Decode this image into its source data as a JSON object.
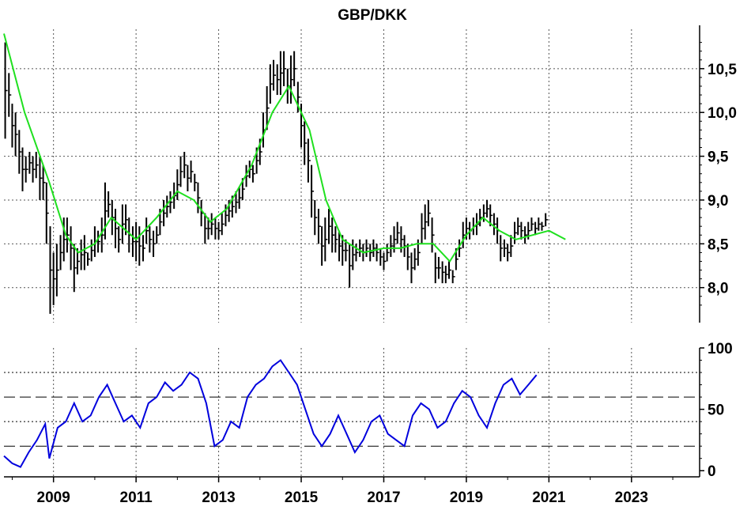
{
  "chart_data": [
    {
      "type": "ohlc",
      "title": "GBP/DKK",
      "y_ticks": [
        "8,0",
        "8,5",
        "9,0",
        "9,5",
        "10,0",
        "10,5"
      ],
      "ylim": [
        7.6,
        10.95
      ],
      "xlim": [
        2007.8,
        2024.65
      ],
      "grid": true,
      "colors": {
        "bars": "#000000",
        "moving_average": "#1fe01f",
        "grid": "#555555"
      },
      "bars_monthly_approx": [
        [
          2007.83,
          10.8,
          9.7
        ],
        [
          2007.92,
          10.45,
          9.95
        ],
        [
          2008.0,
          10.1,
          9.6
        ],
        [
          2008.08,
          10.0,
          9.5
        ],
        [
          2008.17,
          9.8,
          9.3
        ],
        [
          2008.25,
          9.6,
          9.1
        ],
        [
          2008.33,
          9.5,
          9.2
        ],
        [
          2008.42,
          9.55,
          9.3
        ],
        [
          2008.5,
          9.5,
          9.2
        ],
        [
          2008.58,
          9.55,
          9.25
        ],
        [
          2008.67,
          9.5,
          9.0
        ],
        [
          2008.75,
          9.4,
          9.0
        ],
        [
          2008.83,
          9.2,
          8.5
        ],
        [
          2008.92,
          8.7,
          7.7
        ],
        [
          2009.0,
          8.4,
          7.8
        ],
        [
          2009.08,
          8.5,
          7.9
        ],
        [
          2009.17,
          8.6,
          8.2
        ],
        [
          2009.25,
          8.8,
          8.3
        ],
        [
          2009.33,
          8.8,
          8.4
        ],
        [
          2009.42,
          8.7,
          8.2
        ],
        [
          2009.5,
          8.5,
          7.95
        ],
        [
          2009.58,
          8.45,
          8.15
        ],
        [
          2009.67,
          8.55,
          8.2
        ],
        [
          2009.75,
          8.6,
          8.2
        ],
        [
          2009.83,
          8.4,
          8.25
        ],
        [
          2009.92,
          8.55,
          8.3
        ],
        [
          2010.0,
          8.7,
          8.35
        ],
        [
          2010.08,
          8.65,
          8.4
        ],
        [
          2010.17,
          8.8,
          8.4
        ],
        [
          2010.25,
          9.2,
          8.55
        ],
        [
          2010.33,
          9.1,
          8.8
        ],
        [
          2010.42,
          9.0,
          8.6
        ],
        [
          2010.5,
          8.9,
          8.45
        ],
        [
          2010.58,
          8.7,
          8.4
        ],
        [
          2010.67,
          8.95,
          8.5
        ],
        [
          2010.75,
          8.95,
          8.6
        ],
        [
          2010.83,
          8.8,
          8.4
        ],
        [
          2010.92,
          8.7,
          8.35
        ],
        [
          2011.0,
          8.75,
          8.3
        ],
        [
          2011.08,
          8.7,
          8.25
        ],
        [
          2011.17,
          8.6,
          8.3
        ],
        [
          2011.25,
          8.8,
          8.5
        ],
        [
          2011.33,
          8.7,
          8.4
        ],
        [
          2011.42,
          8.65,
          8.35
        ],
        [
          2011.5,
          8.7,
          8.5
        ],
        [
          2011.58,
          8.9,
          8.6
        ],
        [
          2011.67,
          9.0,
          8.7
        ],
        [
          2011.75,
          9.05,
          8.8
        ],
        [
          2011.83,
          9.1,
          8.85
        ],
        [
          2011.92,
          9.2,
          8.9
        ],
        [
          2012.0,
          9.35,
          9.0
        ],
        [
          2012.08,
          9.5,
          9.15
        ],
        [
          2012.17,
          9.55,
          9.25
        ],
        [
          2012.25,
          9.4,
          9.1
        ],
        [
          2012.33,
          9.45,
          9.2
        ],
        [
          2012.42,
          9.3,
          9.1
        ],
        [
          2012.5,
          9.2,
          8.85
        ],
        [
          2012.58,
          9.0,
          8.7
        ],
        [
          2012.67,
          8.85,
          8.5
        ],
        [
          2012.75,
          8.8,
          8.55
        ],
        [
          2012.83,
          8.85,
          8.6
        ],
        [
          2012.92,
          8.8,
          8.55
        ],
        [
          2013.0,
          8.75,
          8.55
        ],
        [
          2013.08,
          8.85,
          8.6
        ],
        [
          2013.17,
          8.95,
          8.7
        ],
        [
          2013.25,
          9.0,
          8.75
        ],
        [
          2013.33,
          9.05,
          8.8
        ],
        [
          2013.42,
          9.1,
          8.85
        ],
        [
          2013.5,
          9.15,
          8.9
        ],
        [
          2013.58,
          9.25,
          9.0
        ],
        [
          2013.67,
          9.4,
          9.15
        ],
        [
          2013.75,
          9.45,
          9.25
        ],
        [
          2013.83,
          9.4,
          9.2
        ],
        [
          2013.92,
          9.6,
          9.3
        ],
        [
          2014.0,
          9.7,
          9.4
        ],
        [
          2014.08,
          10.0,
          9.6
        ],
        [
          2014.17,
          10.3,
          9.8
        ],
        [
          2014.25,
          10.55,
          10.1
        ],
        [
          2014.33,
          10.6,
          10.25
        ],
        [
          2014.42,
          10.55,
          10.2
        ],
        [
          2014.5,
          10.7,
          10.2
        ],
        [
          2014.58,
          10.7,
          10.3
        ],
        [
          2014.67,
          10.5,
          10.1
        ],
        [
          2014.75,
          10.65,
          10.1
        ],
        [
          2014.83,
          10.7,
          10.3
        ],
        [
          2014.92,
          10.35,
          10.0
        ],
        [
          2015.0,
          10.1,
          9.6
        ],
        [
          2015.08,
          9.9,
          9.4
        ],
        [
          2015.17,
          9.7,
          9.2
        ],
        [
          2015.25,
          9.4,
          8.8
        ],
        [
          2015.33,
          9.0,
          8.6
        ],
        [
          2015.42,
          8.9,
          8.5
        ],
        [
          2015.5,
          8.7,
          8.25
        ],
        [
          2015.58,
          8.8,
          8.3
        ],
        [
          2015.67,
          8.9,
          8.5
        ],
        [
          2015.75,
          8.8,
          8.4
        ],
        [
          2015.83,
          8.7,
          8.4
        ],
        [
          2015.92,
          8.65,
          8.3
        ],
        [
          2016.0,
          8.6,
          8.25
        ],
        [
          2016.08,
          8.55,
          8.3
        ],
        [
          2016.17,
          8.5,
          8.0
        ],
        [
          2016.25,
          8.55,
          8.2
        ],
        [
          2016.33,
          8.5,
          8.3
        ],
        [
          2016.42,
          8.55,
          8.35
        ],
        [
          2016.5,
          8.5,
          8.3
        ],
        [
          2016.58,
          8.55,
          8.35
        ],
        [
          2016.67,
          8.5,
          8.3
        ],
        [
          2016.75,
          8.55,
          8.35
        ],
        [
          2016.83,
          8.5,
          8.3
        ],
        [
          2016.92,
          8.45,
          8.25
        ],
        [
          2017.0,
          8.4,
          8.2
        ],
        [
          2017.08,
          8.5,
          8.3
        ],
        [
          2017.17,
          8.6,
          8.35
        ],
        [
          2017.25,
          8.7,
          8.4
        ],
        [
          2017.33,
          8.75,
          8.5
        ],
        [
          2017.42,
          8.7,
          8.4
        ],
        [
          2017.5,
          8.6,
          8.35
        ],
        [
          2017.58,
          8.5,
          8.2
        ],
        [
          2017.67,
          8.4,
          8.05
        ],
        [
          2017.75,
          8.45,
          8.2
        ],
        [
          2017.83,
          8.55,
          8.25
        ],
        [
          2017.92,
          8.85,
          8.5
        ],
        [
          2018.0,
          8.95,
          8.55
        ],
        [
          2018.08,
          9.0,
          8.7
        ],
        [
          2018.17,
          8.8,
          8.4
        ],
        [
          2018.25,
          8.4,
          8.05
        ],
        [
          2018.33,
          8.35,
          8.1
        ],
        [
          2018.42,
          8.3,
          8.05
        ],
        [
          2018.5,
          8.25,
          8.05
        ],
        [
          2018.58,
          8.3,
          8.1
        ],
        [
          2018.67,
          8.2,
          8.05
        ],
        [
          2018.75,
          8.45,
          8.2
        ],
        [
          2018.83,
          8.55,
          8.35
        ],
        [
          2018.92,
          8.75,
          8.45
        ],
        [
          2019.0,
          8.8,
          8.55
        ],
        [
          2019.08,
          8.75,
          8.55
        ],
        [
          2019.17,
          8.8,
          8.6
        ],
        [
          2019.25,
          8.85,
          8.6
        ],
        [
          2019.33,
          8.9,
          8.7
        ],
        [
          2019.42,
          8.95,
          8.75
        ],
        [
          2019.5,
          9.0,
          8.8
        ],
        [
          2019.58,
          8.95,
          8.7
        ],
        [
          2019.67,
          8.85,
          8.6
        ],
        [
          2019.75,
          8.8,
          8.5
        ],
        [
          2019.83,
          8.6,
          8.3
        ],
        [
          2019.92,
          8.55,
          8.35
        ],
        [
          2020.0,
          8.5,
          8.3
        ],
        [
          2020.08,
          8.6,
          8.35
        ],
        [
          2020.17,
          8.75,
          8.5
        ],
        [
          2020.25,
          8.8,
          8.6
        ],
        [
          2020.33,
          8.75,
          8.55
        ],
        [
          2020.42,
          8.7,
          8.5
        ],
        [
          2020.5,
          8.75,
          8.55
        ],
        [
          2020.58,
          8.8,
          8.65
        ],
        [
          2020.67,
          8.75,
          8.6
        ],
        [
          2020.75,
          8.8,
          8.65
        ],
        [
          2020.83,
          8.75,
          8.65
        ],
        [
          2020.92,
          8.85,
          8.7
        ]
      ],
      "moving_average_approx": [
        [
          2007.8,
          10.9
        ],
        [
          2008.3,
          10.0
        ],
        [
          2008.9,
          9.2
        ],
        [
          2009.3,
          8.6
        ],
        [
          2009.6,
          8.4
        ],
        [
          2010.0,
          8.5
        ],
        [
          2010.4,
          8.8
        ],
        [
          2011.0,
          8.55
        ],
        [
          2011.5,
          8.8
        ],
        [
          2012.0,
          9.1
        ],
        [
          2012.4,
          9.0
        ],
        [
          2012.8,
          8.75
        ],
        [
          2013.2,
          8.9
        ],
        [
          2013.8,
          9.4
        ],
        [
          2014.3,
          10.0
        ],
        [
          2014.7,
          10.3
        ],
        [
          2015.2,
          9.8
        ],
        [
          2015.6,
          9.0
        ],
        [
          2016.0,
          8.55
        ],
        [
          2016.5,
          8.4
        ],
        [
          2017.0,
          8.45
        ],
        [
          2017.4,
          8.45
        ],
        [
          2017.8,
          8.5
        ],
        [
          2018.2,
          8.5
        ],
        [
          2018.6,
          8.3
        ],
        [
          2019.0,
          8.6
        ],
        [
          2019.4,
          8.8
        ],
        [
          2019.8,
          8.65
        ],
        [
          2020.2,
          8.55
        ],
        [
          2020.6,
          8.6
        ],
        [
          2021.0,
          8.65
        ],
        [
          2021.4,
          8.55
        ]
      ]
    },
    {
      "type": "line",
      "y_ticks": [
        "0",
        "50",
        "100"
      ],
      "x_ticks": [
        "2009",
        "2011",
        "2013",
        "2015",
        "2017",
        "2019",
        "2021",
        "2023"
      ],
      "ylim": [
        -5,
        100
      ],
      "reference_lines": [
        {
          "value": 80,
          "style": "dotted"
        },
        {
          "value": 60,
          "style": "dashed"
        },
        {
          "value": 40,
          "style": "dotted"
        },
        {
          "value": 20,
          "style": "dashed"
        }
      ],
      "colors": {
        "line": "#0000dd"
      },
      "series_approx": [
        [
          2007.8,
          12
        ],
        [
          2008.0,
          6
        ],
        [
          2008.2,
          3
        ],
        [
          2008.4,
          15
        ],
        [
          2008.6,
          25
        ],
        [
          2008.8,
          38
        ],
        [
          2008.9,
          10
        ],
        [
          2009.1,
          35
        ],
        [
          2009.3,
          40
        ],
        [
          2009.5,
          55
        ],
        [
          2009.7,
          40
        ],
        [
          2009.9,
          45
        ],
        [
          2010.1,
          60
        ],
        [
          2010.3,
          70
        ],
        [
          2010.5,
          55
        ],
        [
          2010.7,
          40
        ],
        [
          2010.9,
          45
        ],
        [
          2011.1,
          35
        ],
        [
          2011.3,
          55
        ],
        [
          2011.5,
          60
        ],
        [
          2011.7,
          72
        ],
        [
          2011.9,
          65
        ],
        [
          2012.1,
          70
        ],
        [
          2012.3,
          80
        ],
        [
          2012.5,
          75
        ],
        [
          2012.7,
          55
        ],
        [
          2012.9,
          20
        ],
        [
          2013.1,
          25
        ],
        [
          2013.3,
          40
        ],
        [
          2013.5,
          35
        ],
        [
          2013.7,
          60
        ],
        [
          2013.9,
          70
        ],
        [
          2014.1,
          75
        ],
        [
          2014.3,
          85
        ],
        [
          2014.5,
          90
        ],
        [
          2014.7,
          80
        ],
        [
          2014.9,
          70
        ],
        [
          2015.1,
          50
        ],
        [
          2015.3,
          30
        ],
        [
          2015.5,
          20
        ],
        [
          2015.7,
          30
        ],
        [
          2015.9,
          45
        ],
        [
          2016.1,
          30
        ],
        [
          2016.3,
          15
        ],
        [
          2016.5,
          25
        ],
        [
          2016.7,
          40
        ],
        [
          2016.9,
          45
        ],
        [
          2017.1,
          30
        ],
        [
          2017.3,
          25
        ],
        [
          2017.5,
          20
        ],
        [
          2017.7,
          45
        ],
        [
          2017.9,
          55
        ],
        [
          2018.1,
          50
        ],
        [
          2018.3,
          35
        ],
        [
          2018.5,
          40
        ],
        [
          2018.7,
          55
        ],
        [
          2018.9,
          65
        ],
        [
          2019.1,
          60
        ],
        [
          2019.3,
          45
        ],
        [
          2019.5,
          35
        ],
        [
          2019.7,
          55
        ],
        [
          2019.9,
          70
        ],
        [
          2020.1,
          75
        ],
        [
          2020.3,
          62
        ],
        [
          2020.5,
          70
        ],
        [
          2020.7,
          78
        ]
      ]
    }
  ]
}
